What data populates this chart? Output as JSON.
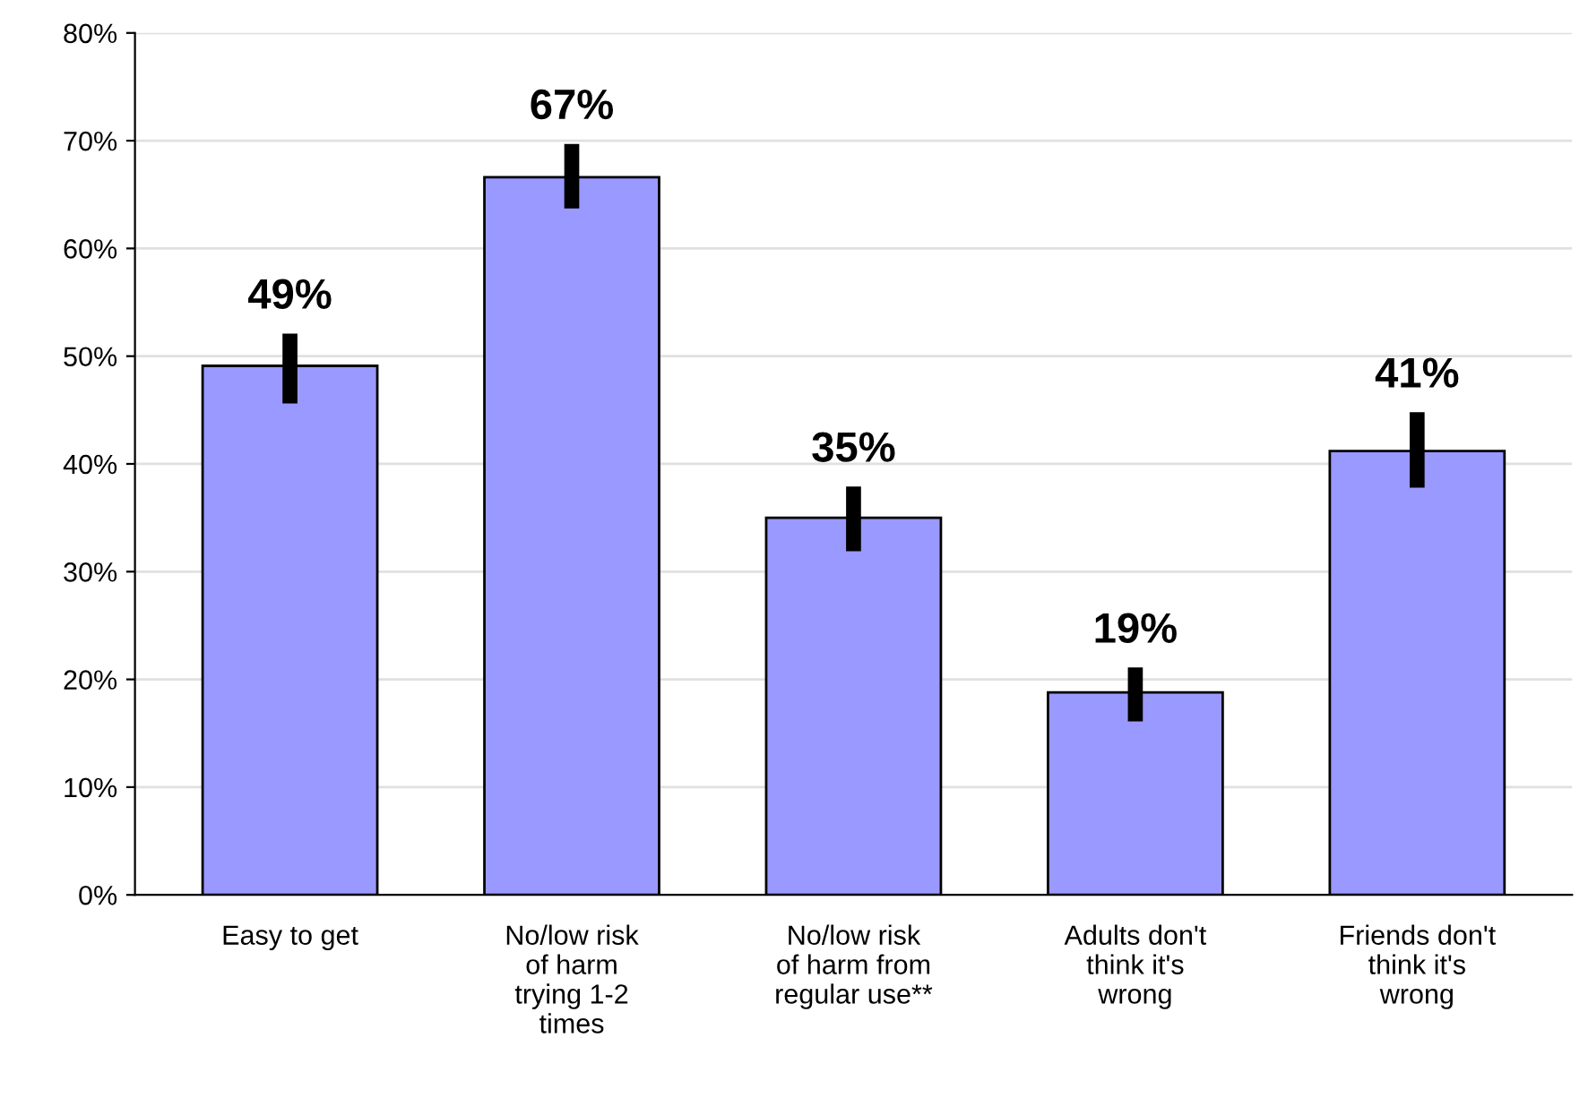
{
  "chart_data": {
    "type": "bar",
    "categories": [
      "Easy to get",
      "No/low risk\nof harm\ntrying 1-2\ntimes",
      "No/low risk\nof harm from\nregular use**",
      "Adults don't\nthink it's\nwrong",
      "Friends don't\nthink it's\nwrong"
    ],
    "values": [
      49.1,
      66.6,
      35.0,
      18.8,
      41.2
    ],
    "value_labels": [
      "49%",
      "67%",
      "35%",
      "19%",
      "41%"
    ],
    "errors": [
      [
        45.6,
        52.1
      ],
      [
        63.7,
        69.7
      ],
      [
        31.9,
        37.9
      ],
      [
        16.1,
        21.1
      ],
      [
        37.8,
        44.8
      ]
    ],
    "color": "#9999ff",
    "ylim": [
      0,
      80
    ],
    "yticks": [
      {
        "value": 0,
        "label": "0%"
      },
      {
        "value": 10,
        "label": "10%"
      },
      {
        "value": 20,
        "label": "20%"
      },
      {
        "value": 30,
        "label": "30%"
      },
      {
        "value": 40,
        "label": "40%"
      },
      {
        "value": 50,
        "label": "50%"
      },
      {
        "value": 60,
        "label": "60%"
      },
      {
        "value": 70,
        "label": "70%"
      },
      {
        "value": 80,
        "label": "80%"
      }
    ],
    "grid": "y"
  }
}
